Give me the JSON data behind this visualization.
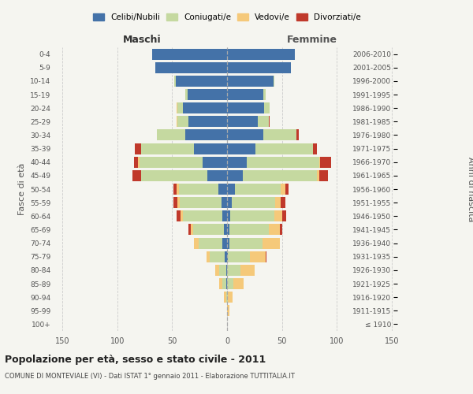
{
  "age_groups": [
    "100+",
    "95-99",
    "90-94",
    "85-89",
    "80-84",
    "75-79",
    "70-74",
    "65-69",
    "60-64",
    "55-59",
    "50-54",
    "45-49",
    "40-44",
    "35-39",
    "30-34",
    "25-29",
    "20-24",
    "15-19",
    "10-14",
    "5-9",
    "0-4"
  ],
  "birth_years": [
    "≤ 1910",
    "1911-1915",
    "1916-1920",
    "1921-1925",
    "1926-1930",
    "1931-1935",
    "1936-1940",
    "1941-1945",
    "1946-1950",
    "1951-1955",
    "1956-1960",
    "1961-1965",
    "1966-1970",
    "1971-1975",
    "1976-1980",
    "1981-1985",
    "1986-1990",
    "1991-1995",
    "1996-2000",
    "2001-2005",
    "2006-2010"
  ],
  "colors": {
    "celibe": "#4472a8",
    "coniugato": "#c5d9a0",
    "vedovo": "#f5c97a",
    "divorziato": "#c0392b"
  },
  "maschi": {
    "celibe": [
      0,
      0,
      0,
      1,
      1,
      2,
      4,
      3,
      4,
      5,
      8,
      18,
      22,
      30,
      38,
      35,
      40,
      36,
      47,
      65,
      68
    ],
    "coniugato": [
      0,
      0,
      1,
      3,
      6,
      14,
      22,
      28,
      36,
      38,
      36,
      60,
      58,
      48,
      26,
      10,
      5,
      2,
      1,
      0,
      0
    ],
    "vedovo": [
      0,
      0,
      2,
      3,
      4,
      3,
      4,
      2,
      2,
      2,
      2,
      0,
      1,
      0,
      0,
      1,
      1,
      0,
      0,
      0,
      0
    ],
    "divorziato": [
      0,
      0,
      0,
      0,
      0,
      0,
      0,
      2,
      4,
      4,
      3,
      8,
      4,
      6,
      0,
      0,
      0,
      0,
      0,
      0,
      0
    ]
  },
  "femmine": {
    "nubile": [
      0,
      0,
      0,
      0,
      0,
      1,
      2,
      2,
      3,
      4,
      7,
      14,
      18,
      26,
      33,
      28,
      34,
      33,
      42,
      58,
      62
    ],
    "coniugata": [
      0,
      0,
      1,
      6,
      12,
      20,
      30,
      36,
      40,
      40,
      42,
      68,
      66,
      52,
      30,
      10,
      5,
      2,
      1,
      0,
      0
    ],
    "vedova": [
      0,
      2,
      4,
      9,
      13,
      14,
      16,
      10,
      7,
      5,
      4,
      2,
      1,
      0,
      0,
      0,
      0,
      0,
      0,
      0,
      0
    ],
    "divorziata": [
      0,
      0,
      0,
      0,
      0,
      1,
      0,
      2,
      4,
      4,
      3,
      8,
      10,
      4,
      2,
      1,
      0,
      0,
      0,
      0,
      0
    ]
  },
  "xlim": 155,
  "title": "Popolazione per età, sesso e stato civile - 2011",
  "subtitle": "COMUNE DI MONTEVIALE (VI) - Dati ISTAT 1° gennaio 2011 - Elaborazione TUTTITALIA.IT",
  "ylabel_left": "Fasce di età",
  "ylabel_right": "Anni di nascita",
  "xlabel_left": "Maschi",
  "xlabel_right": "Femmine",
  "legend_labels": [
    "Celibi/Nubili",
    "Coniugati/e",
    "Vedovi/e",
    "Divorziati/e"
  ],
  "legend_colors": [
    "#4472a8",
    "#c5d9a0",
    "#f5c97a",
    "#c0392b"
  ],
  "bg_color": "#f5f5f0",
  "grid_color": "#cccccc"
}
